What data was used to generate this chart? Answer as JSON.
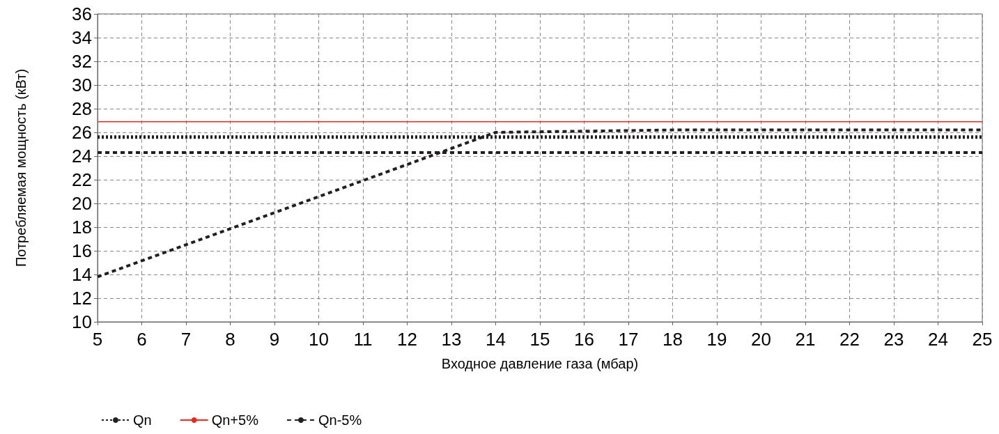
{
  "chart_data": {
    "type": "line",
    "xlabel": "Входное давление газа (мбар)",
    "ylabel": "Потребляемая мощность (кВт)",
    "xlim": [
      5,
      25
    ],
    "xticks": [
      5,
      6,
      7,
      8,
      9,
      10,
      11,
      12,
      13,
      14,
      15,
      16,
      17,
      18,
      19,
      20,
      21,
      22,
      23,
      24,
      25
    ],
    "ylim": [
      10,
      36
    ],
    "yticks": [
      10,
      12,
      14,
      16,
      18,
      20,
      22,
      24,
      26,
      28,
      30,
      32,
      34,
      36
    ],
    "grid": true,
    "legend": "bottom left",
    "marker": "none",
    "series": [
      {
        "color": "#231f20",
        "line_style": "dashed",
        "x": [
          5,
          14,
          18,
          25
        ],
        "values": [
          13.8,
          26,
          26.2,
          26.2
        ]
      },
      {
        "name": "Qn",
        "color": "#231f20",
        "line_style": "dotted",
        "x": [
          5,
          25
        ],
        "values": [
          25.6,
          25.6
        ]
      },
      {
        "name": "Qn+5%",
        "color": "#e8291c",
        "line_style": "solid",
        "x": [
          5,
          25
        ],
        "values": [
          26.9,
          26.9
        ]
      },
      {
        "name": "Qn-5%",
        "color": "#231f20",
        "line_style": "dashed",
        "x": [
          5,
          25
        ],
        "values": [
          24.3,
          24.3
        ]
      }
    ]
  }
}
